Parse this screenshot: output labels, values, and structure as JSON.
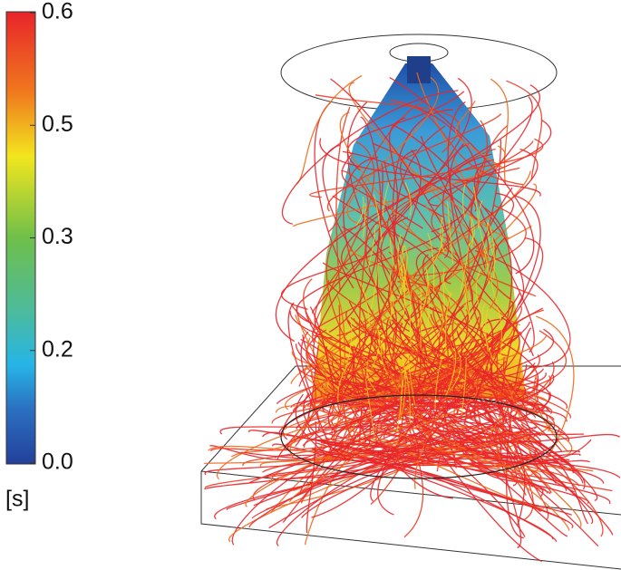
{
  "colorbar": {
    "ticks": [
      "0.6",
      "0.5",
      "0.3",
      "0.2",
      "0.0"
    ],
    "unit": "[s]"
  }
}
